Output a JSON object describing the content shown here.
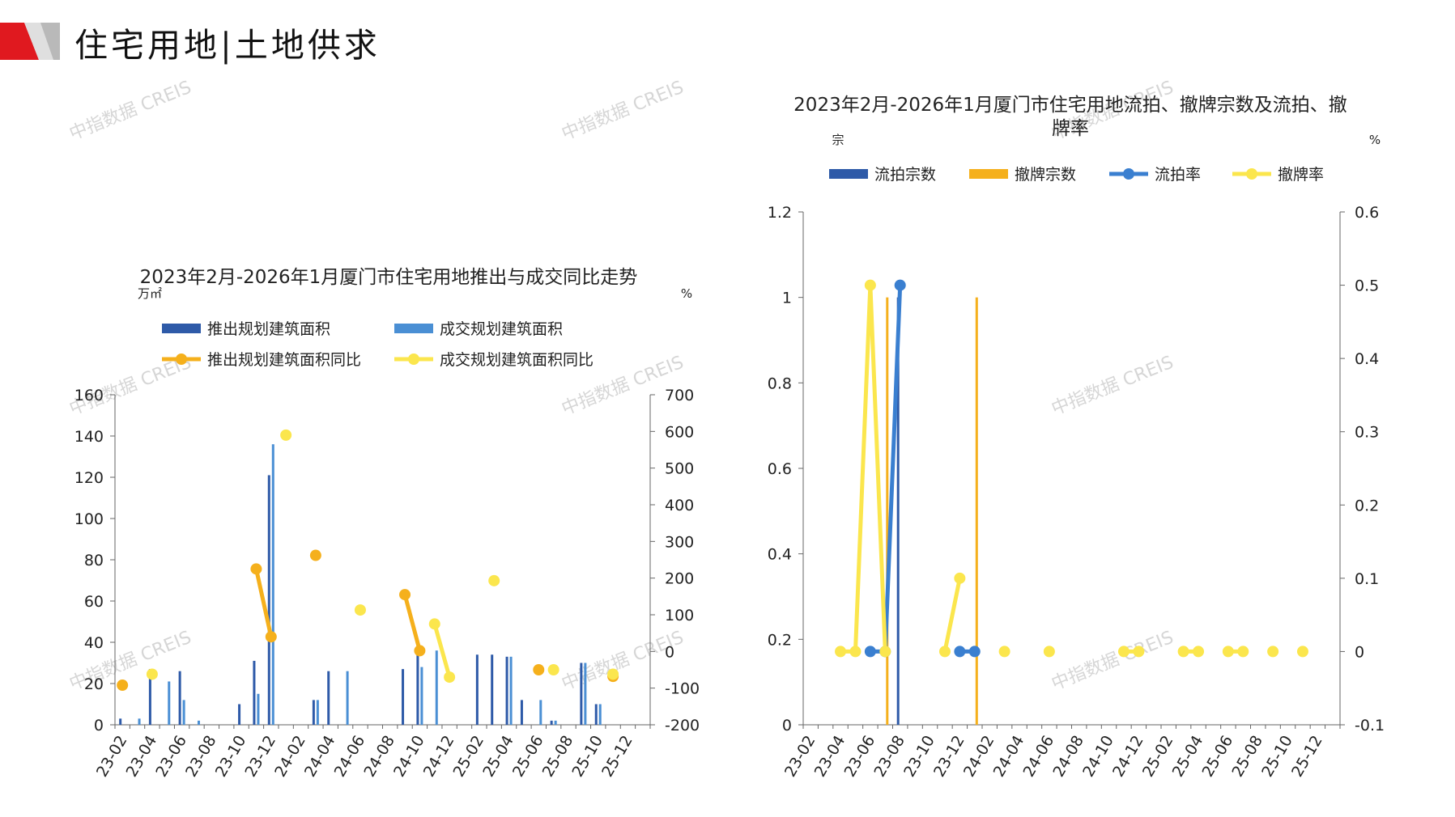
{
  "header": {
    "title": "住宅用地|土地供求",
    "brand_color": "#e0191f"
  },
  "watermark": "中指数据 CREIS",
  "chart_data": [
    {
      "type": "bar",
      "title": "2023年2月-2026年1月厦门市住宅用地推出与成交同比走势",
      "y_unit_left": "万㎡",
      "y_unit_right": "%",
      "ylim_left": [
        0,
        160
      ],
      "yticks_left": [
        "0",
        "20",
        "40",
        "60",
        "80",
        "100",
        "120",
        "140",
        "160"
      ],
      "ylim_right": [
        -200,
        700
      ],
      "yticks_right": [
        "-200",
        "-100",
        "0",
        "100",
        "200",
        "300",
        "400",
        "500",
        "600",
        "700"
      ],
      "categories": [
        "23-02",
        "23-03",
        "23-04",
        "23-05",
        "23-06",
        "23-07",
        "23-08",
        "23-09",
        "23-10",
        "23-11",
        "23-12",
        "24-01",
        "24-02",
        "24-03",
        "24-04",
        "24-05",
        "24-06",
        "24-07",
        "24-08",
        "24-09",
        "24-10",
        "24-11",
        "24-12",
        "25-01",
        "25-02",
        "25-03",
        "25-04",
        "25-05",
        "25-06",
        "25-07",
        "25-08",
        "25-09",
        "25-10",
        "25-11",
        "25-12",
        "26-01"
      ],
      "tick_labels": [
        "23-02",
        "23-04",
        "23-06",
        "23-08",
        "23-10",
        "23-12",
        "24-02",
        "24-04",
        "24-06",
        "24-08",
        "24-10",
        "24-12",
        "25-02",
        "25-04",
        "25-06",
        "25-08",
        "25-10",
        "25-12"
      ],
      "legend": [
        "推出规划建筑面积",
        "成交规划建筑面积",
        "推出规划建筑面积同比",
        "成交规划建筑面积同比"
      ],
      "series": [
        {
          "name": "推出规划建筑面积",
          "kind": "bar",
          "axis": "left",
          "color": "#2e5aa8",
          "values": [
            3,
            0,
            27,
            0,
            26,
            0,
            0,
            0,
            10,
            31,
            121,
            0,
            0,
            12,
            26,
            0,
            0,
            0,
            0,
            27,
            38,
            0,
            0,
            0,
            34,
            34,
            33,
            12,
            0,
            2,
            0,
            30,
            10,
            0,
            0,
            0
          ]
        },
        {
          "name": "成交规划建筑面积",
          "kind": "bar",
          "axis": "left",
          "color": "#4a8fd4",
          "values": [
            0,
            3,
            0,
            21,
            12,
            2,
            0,
            0,
            0,
            15,
            136,
            0,
            0,
            12,
            0,
            26,
            0,
            0,
            0,
            0,
            28,
            36,
            0,
            0,
            0,
            0,
            33,
            0,
            12,
            2,
            0,
            30,
            10,
            0,
            0,
            0
          ]
        },
        {
          "name": "推出规划建筑面积同比",
          "kind": "line",
          "axis": "right",
          "color": "#f5b01c",
          "values": [
            -92,
            null,
            null,
            null,
            null,
            null,
            null,
            null,
            null,
            225,
            40,
            null,
            null,
            262,
            null,
            null,
            null,
            null,
            null,
            155,
            2,
            null,
            null,
            null,
            null,
            null,
            null,
            null,
            -50,
            null,
            null,
            null,
            null,
            -68,
            null,
            null
          ]
        },
        {
          "name": "成交规划建筑面积同比",
          "kind": "line",
          "axis": "right",
          "color": "#fbe64d",
          "values": [
            null,
            null,
            -62,
            null,
            null,
            null,
            null,
            null,
            null,
            null,
            null,
            590,
            null,
            null,
            null,
            null,
            113,
            null,
            null,
            null,
            null,
            75,
            -70,
            null,
            null,
            193,
            null,
            null,
            null,
            -50,
            null,
            null,
            null,
            -62,
            null,
            null
          ]
        }
      ]
    },
    {
      "type": "bar",
      "title": "2023年2月-2026年1月厦门市住宅用地流拍、撤牌宗数及流拍、撤牌率",
      "y_unit_left": "宗",
      "y_unit_right": "%",
      "ylim_left": [
        0,
        1.2
      ],
      "yticks_left": [
        "0",
        "0.2",
        "0.4",
        "0.6",
        "0.8",
        "1",
        "1.2"
      ],
      "ylim_right": [
        -0.1,
        0.6
      ],
      "yticks_right": [
        "-0.1",
        "0",
        "0.1",
        "0.2",
        "0.3",
        "0.4",
        "0.5",
        "0.6"
      ],
      "categories": [
        "23-02",
        "23-03",
        "23-04",
        "23-05",
        "23-06",
        "23-07",
        "23-08",
        "23-09",
        "23-10",
        "23-11",
        "23-12",
        "24-01",
        "24-02",
        "24-03",
        "24-04",
        "24-05",
        "24-06",
        "24-07",
        "24-08",
        "24-09",
        "24-10",
        "24-11",
        "24-12",
        "25-01",
        "25-02",
        "25-03",
        "25-04",
        "25-05",
        "25-06",
        "25-07",
        "25-08",
        "25-09",
        "25-10",
        "25-11",
        "25-12",
        "26-01"
      ],
      "tick_labels": [
        "23-02",
        "23-04",
        "23-06",
        "23-08",
        "23-10",
        "23-12",
        "24-02",
        "24-04",
        "24-06",
        "24-08",
        "24-10",
        "24-12",
        "25-02",
        "25-04",
        "25-06",
        "25-08",
        "25-10",
        "25-12"
      ],
      "legend": [
        "流拍宗数",
        "撤牌宗数",
        "流拍率",
        "撤牌率"
      ],
      "series": [
        {
          "name": "流拍宗数",
          "kind": "bar",
          "axis": "left",
          "color": "#2e5aa8",
          "values": [
            null,
            null,
            null,
            null,
            0,
            0,
            1,
            null,
            null,
            null,
            0,
            null,
            null,
            null,
            null,
            null,
            null,
            null,
            null,
            null,
            null,
            null,
            null,
            null,
            null,
            null,
            null,
            null,
            null,
            null,
            null,
            null,
            null,
            null,
            null,
            null
          ]
        },
        {
          "name": "撤牌宗数",
          "kind": "bar",
          "axis": "left",
          "color": "#f5b01c",
          "values": [
            null,
            null,
            null,
            null,
            null,
            1,
            null,
            null,
            null,
            null,
            null,
            1,
            null,
            null,
            null,
            null,
            null,
            null,
            null,
            null,
            null,
            null,
            null,
            null,
            null,
            null,
            null,
            null,
            null,
            null,
            null,
            null,
            null,
            null,
            null,
            null
          ]
        },
        {
          "name": "流拍率",
          "kind": "line",
          "axis": "right",
          "color": "#3a7fd0",
          "values": [
            null,
            null,
            null,
            null,
            0,
            0,
            0.5,
            null,
            null,
            null,
            0,
            0,
            null,
            null,
            null,
            null,
            null,
            null,
            null,
            null,
            null,
            null,
            null,
            null,
            null,
            null,
            null,
            null,
            null,
            null,
            null,
            null,
            null,
            null,
            null,
            null
          ]
        },
        {
          "name": "撤牌率",
          "kind": "line",
          "axis": "right",
          "color": "#fbe64d",
          "values": [
            null,
            null,
            0,
            0,
            0.5,
            0,
            null,
            null,
            null,
            0,
            0.1,
            null,
            null,
            0,
            null,
            null,
            0,
            null,
            null,
            null,
            null,
            0,
            0,
            null,
            null,
            0,
            0,
            null,
            0,
            0,
            null,
            0,
            null,
            0,
            null,
            null
          ]
        }
      ]
    }
  ]
}
